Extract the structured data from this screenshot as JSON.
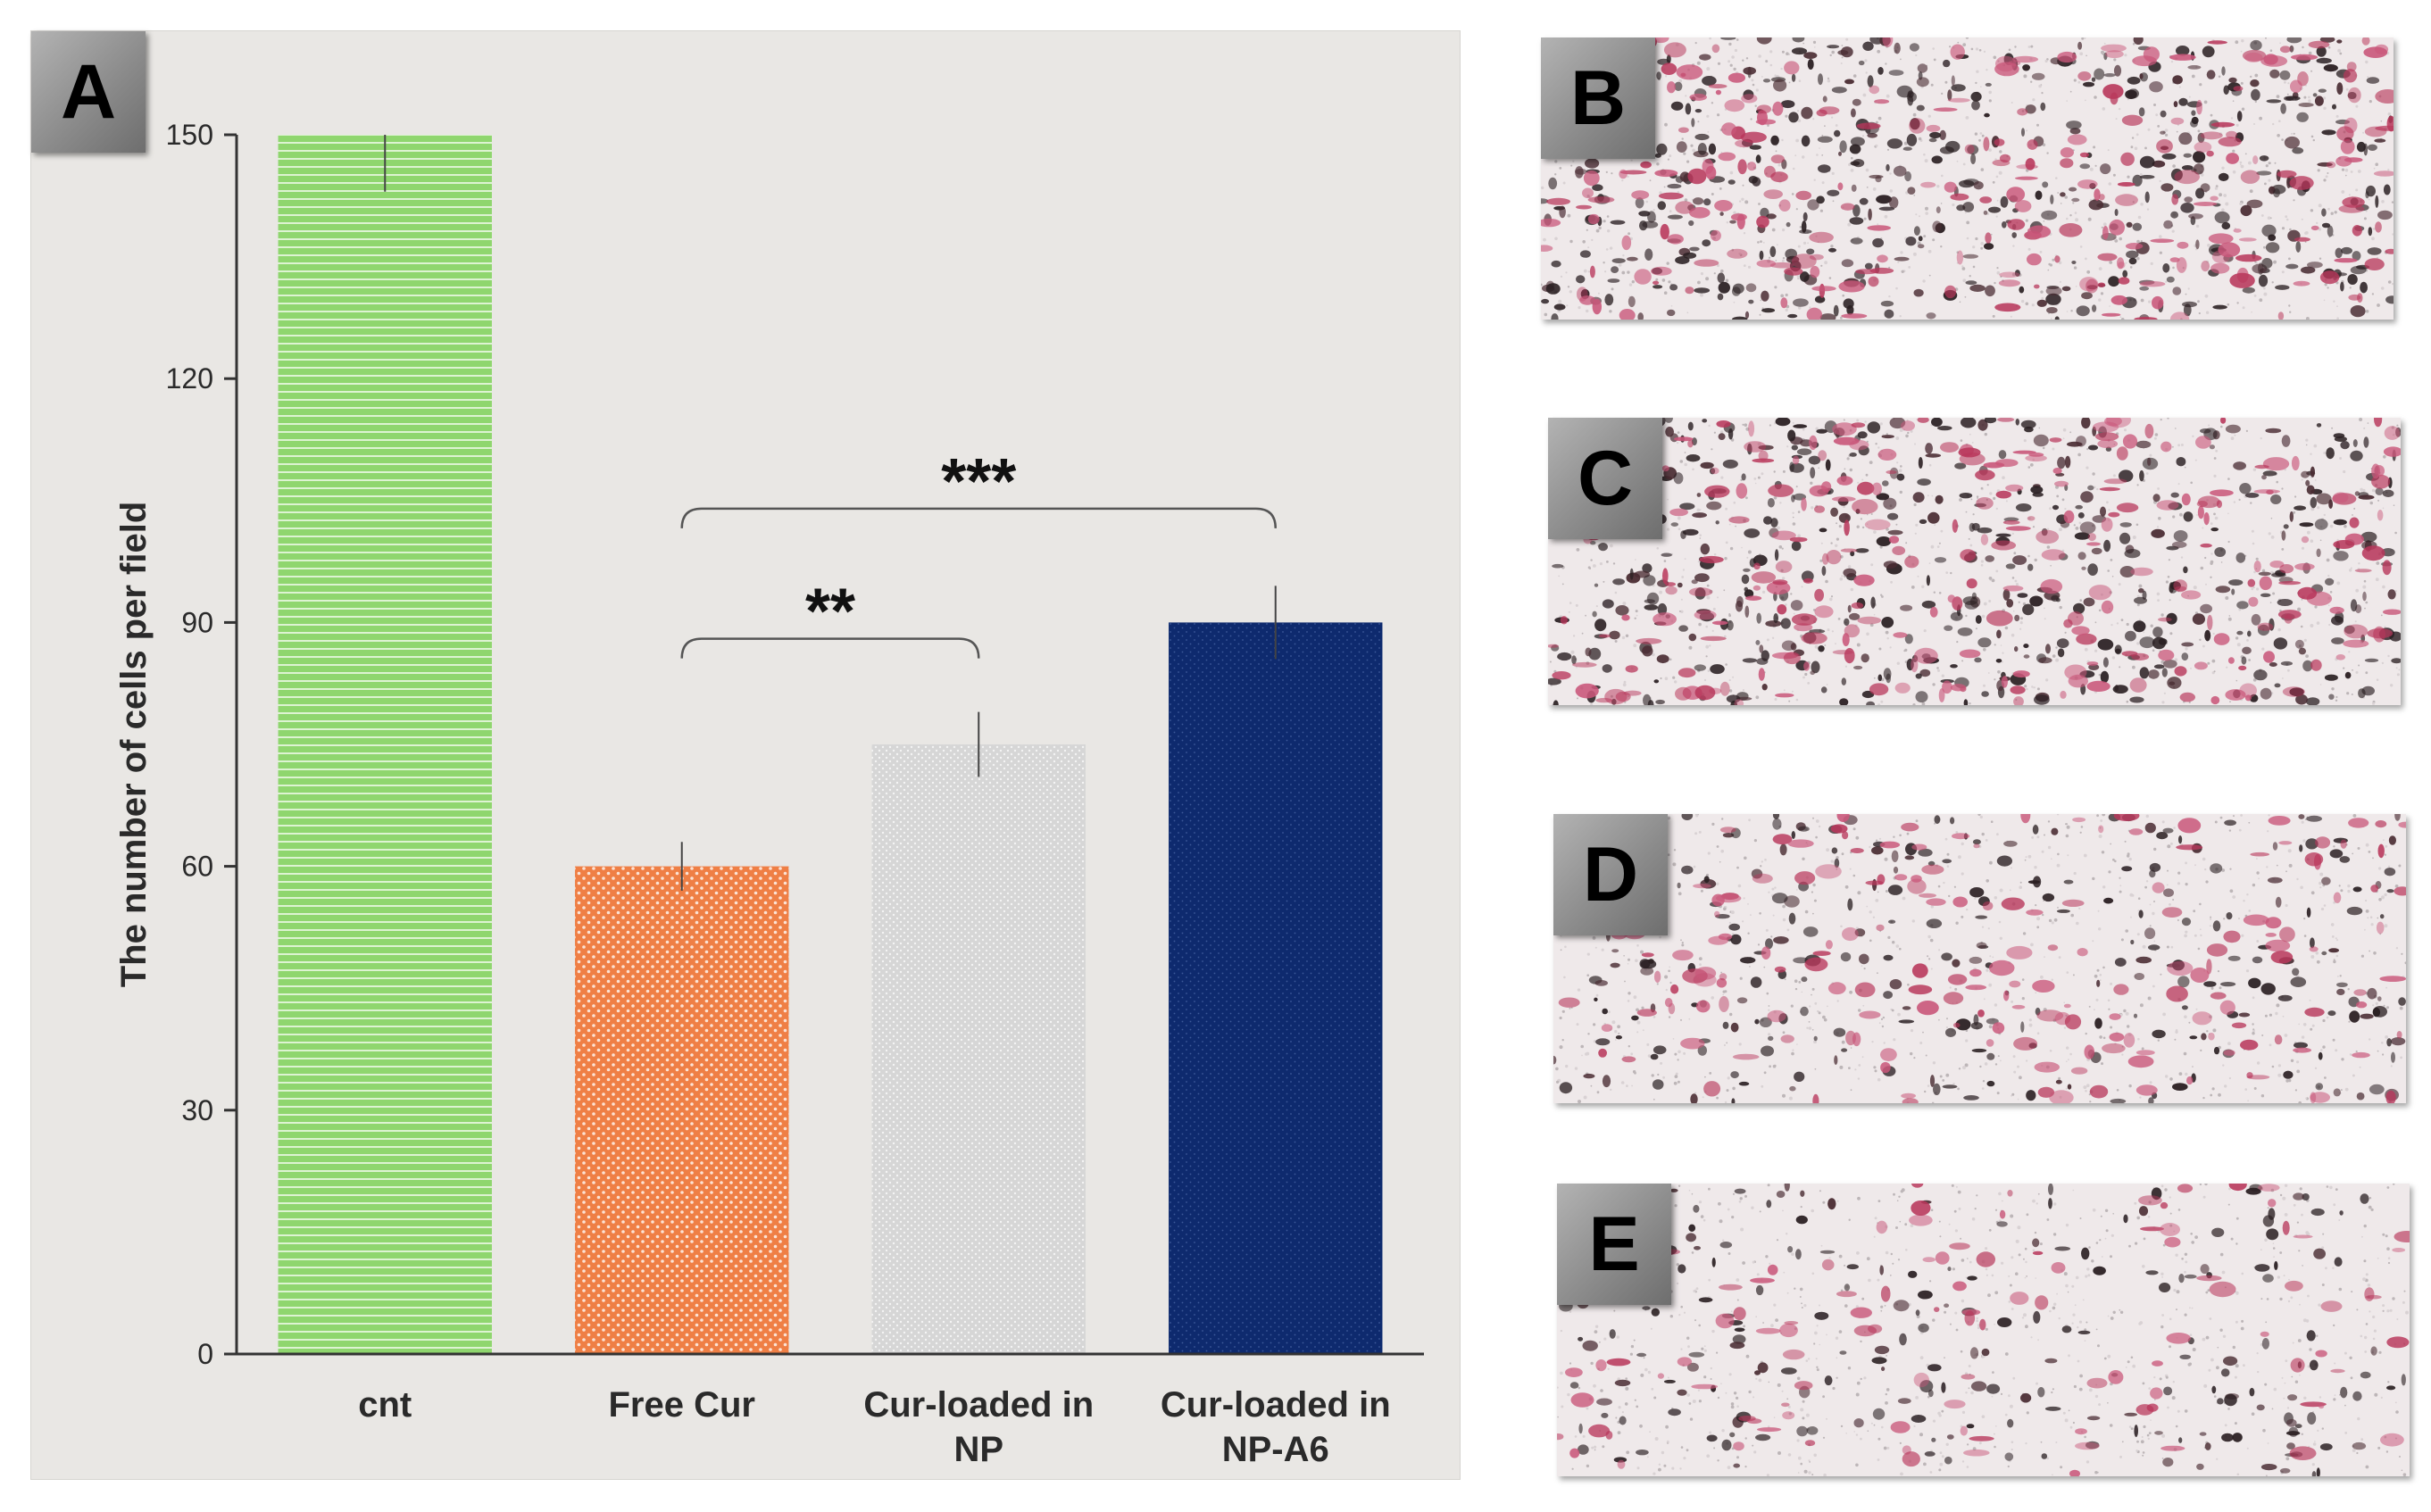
{
  "panel_a": {
    "letter": "A",
    "chart_data": {
      "type": "bar",
      "categories": [
        "cnt",
        "Free Cur",
        "Cur-loaded in NP",
        "Cur-loaded in NP-A6"
      ],
      "category_lines": [
        [
          "cnt"
        ],
        [
          "Free Cur"
        ],
        [
          "Cur-loaded in",
          "NP"
        ],
        [
          "Cur-loaded in",
          "NP-A6"
        ]
      ],
      "values": [
        150,
        60,
        75,
        90
      ],
      "errors": [
        7,
        3,
        4,
        4.5
      ],
      "bar_colors": [
        "#8fd66e",
        "#ef7f45",
        "#d8d8d8",
        "#0e2a6e"
      ],
      "ylabel": "The number of cells per field",
      "xlabel": "",
      "ylim": [
        0,
        150
      ],
      "yticks": [
        0,
        30,
        60,
        90,
        120,
        150
      ],
      "grid": false,
      "significance": [
        {
          "from": 1,
          "to": 2,
          "label": "**"
        },
        {
          "from": 1,
          "to": 3,
          "label": "***"
        }
      ]
    }
  },
  "micro_panels": [
    {
      "letter": "B",
      "density": "high"
    },
    {
      "letter": "C",
      "density": "high"
    },
    {
      "letter": "D",
      "density": "medium"
    },
    {
      "letter": "E",
      "density": "low"
    }
  ]
}
